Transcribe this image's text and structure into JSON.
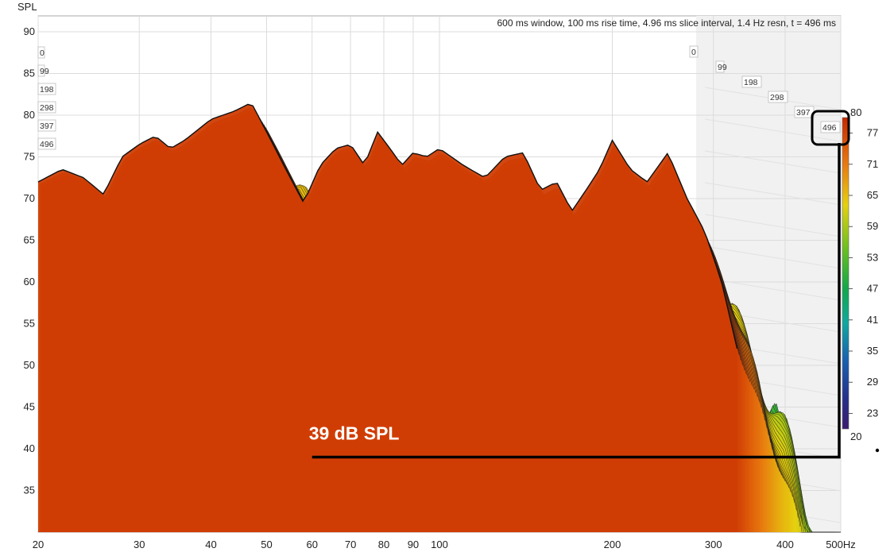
{
  "chart_data": {
    "type": "waterfall",
    "title": "600 ms window, 100 ms rise time, 4.96 ms slice interval, 1.4 Hz resn, t = 496 ms",
    "ylabel": "SPL",
    "xunit": "Hz",
    "xscale": "log",
    "xlim": [
      20,
      500
    ],
    "ylim": [
      30,
      91
    ],
    "x_ticks": [
      {
        "value": 20,
        "label": "20"
      },
      {
        "value": 30,
        "label": "30"
      },
      {
        "value": 40,
        "label": "40"
      },
      {
        "value": 50,
        "label": "50"
      },
      {
        "value": 60,
        "label": "60"
      },
      {
        "value": 70,
        "label": "70"
      },
      {
        "value": 80,
        "label": "80"
      },
      {
        "value": 90,
        "label": "90"
      },
      {
        "value": 100,
        "label": "100"
      },
      {
        "value": 200,
        "label": "200"
      },
      {
        "value": 300,
        "label": "300"
      },
      {
        "value": 400,
        "label": "400"
      },
      {
        "value": 500,
        "label": "500Hz"
      }
    ],
    "y_ticks": [
      35,
      40,
      45,
      50,
      55,
      60,
      65,
      70,
      75,
      80,
      85,
      90
    ],
    "time_slices_ms": [
      0,
      99,
      198,
      298,
      397,
      496
    ],
    "colorbar": {
      "min": 20,
      "max": 80,
      "ticks": [
        80,
        77,
        71,
        65,
        59,
        53,
        47,
        41,
        35,
        29,
        23,
        20
      ]
    },
    "front_slice": {
      "t_ms": 0,
      "freq_hz": [
        20,
        22,
        24,
        26,
        28,
        30,
        32,
        34,
        36,
        40,
        44,
        47,
        50,
        54,
        58,
        62,
        66,
        70,
        74,
        78,
        82,
        86,
        90,
        95,
        100,
        110,
        120,
        130,
        140,
        150,
        160,
        170,
        180,
        190,
        200,
        215,
        230,
        250,
        270,
        290,
        310,
        330
      ],
      "spl_db": [
        72.0,
        73.5,
        72.5,
        70.5,
        75.0,
        76.5,
        77.5,
        76.0,
        77.0,
        79.5,
        80.5,
        81.5,
        78.0,
        73.5,
        69.5,
        74.0,
        76.0,
        76.5,
        74.0,
        78.0,
        76.0,
        74.0,
        75.5,
        75.0,
        76.0,
        74.0,
        72.5,
        75.0,
        75.5,
        71.0,
        72.0,
        68.5,
        71.0,
        73.5,
        77.0,
        73.5,
        72.0,
        75.5,
        70.0,
        66.0,
        60.0,
        52.0
      ]
    },
    "annotations": [
      {
        "text": "39 dB SPL",
        "freq_hz": 60,
        "spl_db": 39
      }
    ]
  }
}
